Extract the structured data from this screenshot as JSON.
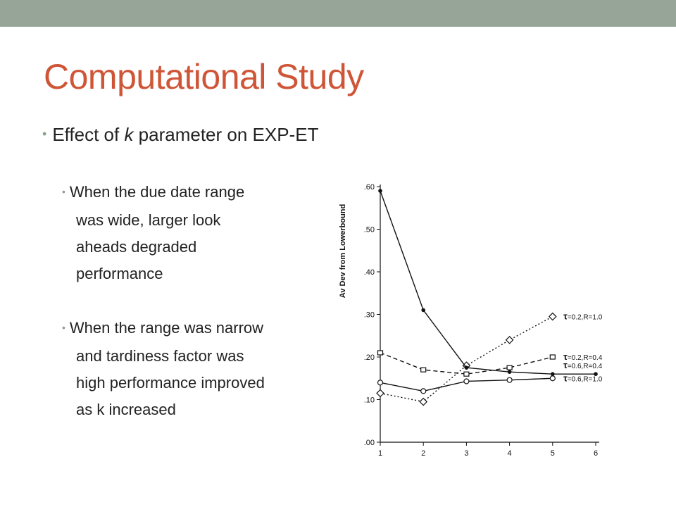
{
  "slide": {
    "title": "Computational Study",
    "bullet_prefix": "Effect of ",
    "bullet_italic": "k",
    "bullet_suffix": " parameter on EXP-ET",
    "sub_bullets": [
      [
        "When the due date range",
        "was wide, larger look",
        "aheads degraded",
        "performance"
      ],
      [
        "When the range was narrow",
        "and tardiness factor was",
        "high performance improved",
        "as k increased"
      ]
    ]
  },
  "chart_data": {
    "type": "line",
    "title": "",
    "xlabel": "",
    "ylabel": "Av Dev from Lowerbound",
    "xlim": [
      1,
      6
    ],
    "ylim": [
      0,
      0.6
    ],
    "x_ticks": [
      "1",
      "2",
      "3",
      "4",
      "5",
      "6"
    ],
    "y_ticks": [
      ".00",
      ".10",
      ".20",
      ".30",
      ".40",
      ".50",
      ".60"
    ],
    "grid": false,
    "legend_position": "right, at line ends",
    "series": [
      {
        "name": "=0.2,R=1.0",
        "marker": "diamond",
        "dash": "dotted",
        "x": [
          1,
          2,
          3,
          4,
          5
        ],
        "y": [
          0.115,
          0.095,
          0.18,
          0.24,
          0.295
        ]
      },
      {
        "name": "=0.2,R=0.4",
        "marker": "square",
        "dash": "dashed",
        "x": [
          1,
          2,
          3,
          4,
          5
        ],
        "y": [
          0.21,
          0.17,
          0.16,
          0.175,
          0.2
        ]
      },
      {
        "name": "=0.6,R=0.4",
        "marker": "dot",
        "dash": "solid",
        "x": [
          1,
          2,
          3,
          4,
          5,
          6
        ],
        "y": [
          0.59,
          0.31,
          0.175,
          0.165,
          0.16,
          0.16
        ]
      },
      {
        "name": "=0.6,R=1.0",
        "marker": "circle",
        "dash": "solid",
        "x": [
          1,
          2,
          3,
          4,
          5
        ],
        "y": [
          0.14,
          0.12,
          0.143,
          0.146,
          0.15
        ]
      }
    ]
  }
}
